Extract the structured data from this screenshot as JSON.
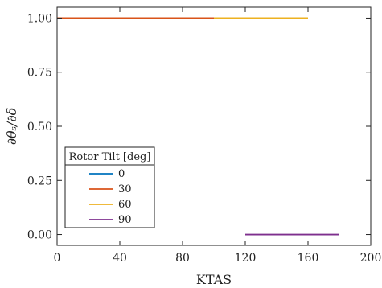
{
  "chart_data": {
    "type": "line",
    "xlabel": "KTAS",
    "ylabel": "∂θₛ/∂δ",
    "xlim": [
      0,
      200
    ],
    "ylim": [
      -0.05,
      1.05
    ],
    "xticks": [
      0,
      40,
      80,
      120,
      160,
      200
    ],
    "xtick_labels": [
      "0",
      "40",
      "80",
      "120",
      "160",
      "200"
    ],
    "yticks": [
      0.0,
      0.25,
      0.5,
      0.75,
      1.0
    ],
    "ytick_labels": [
      "0.00",
      "0.25",
      "0.50",
      "0.75",
      "1.00"
    ],
    "grid": false,
    "legend": {
      "title": "Rotor Tilt [deg]",
      "placement": "lower-left"
    },
    "series": [
      {
        "name": "0",
        "color": "#0072BD",
        "x": [
          0,
          100
        ],
        "y": [
          1.0,
          1.0
        ]
      },
      {
        "name": "30",
        "color": "#D95319",
        "x": [
          0,
          100
        ],
        "y": [
          1.0,
          1.0
        ]
      },
      {
        "name": "60",
        "color": "#EDB120",
        "x": [
          0,
          160
        ],
        "y": [
          1.0,
          1.0
        ]
      },
      {
        "name": "90",
        "color": "#7E2F8E",
        "x": [
          120,
          180
        ],
        "y": [
          0.0,
          0.0
        ]
      }
    ]
  }
}
